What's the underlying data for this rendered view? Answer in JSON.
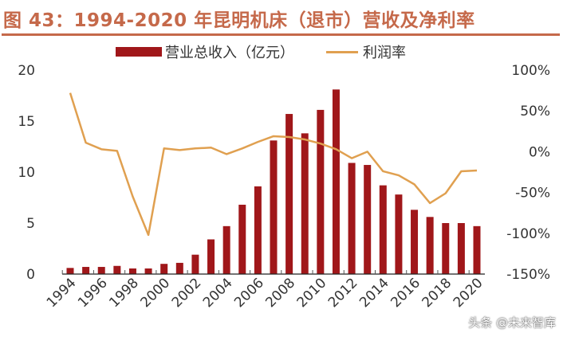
{
  "title": "图 43：1994-2020 年昆明机床（退市）营收及净利率",
  "watermark": "头条 @未来智库",
  "colors": {
    "title": "#c5694a",
    "bar": "#a0171a",
    "line": "#e0a050"
  },
  "chart_data": {
    "type": "bar+line",
    "title": "图 43：1994-2020 年昆明机床（退市）营收及净利率",
    "legend_position": "top",
    "grid": false,
    "categories": [
      "1994",
      "1995",
      "1996",
      "1997",
      "1998",
      "1999",
      "2000",
      "2001",
      "2002",
      "2003",
      "2004",
      "2005",
      "2006",
      "2007",
      "2008",
      "2009",
      "2010",
      "2011",
      "2012",
      "2013",
      "2014",
      "2015",
      "2016",
      "2017",
      "2018",
      "2019",
      "2020"
    ],
    "x_tick_labels": [
      "1994",
      "1996",
      "1998",
      "2000",
      "2002",
      "2004",
      "2006",
      "2008",
      "2010",
      "2012",
      "2014",
      "2016",
      "2018",
      "2020"
    ],
    "left_axis": {
      "ylim": [
        0,
        20
      ],
      "ticks": [
        "0",
        "5",
        "10",
        "15",
        "20"
      ]
    },
    "right_axis": {
      "ylim": [
        -150,
        100
      ],
      "ticks": [
        "-150%",
        "-100%",
        "-50%",
        "0%",
        "50%",
        "100%"
      ]
    },
    "series": [
      {
        "name": "营业总收入（亿元）",
        "type": "bar",
        "axis": "left",
        "values": [
          0.6,
          0.7,
          0.7,
          0.8,
          0.55,
          0.55,
          1.0,
          1.1,
          1.9,
          3.4,
          4.7,
          6.8,
          8.6,
          13.1,
          15.7,
          13.8,
          16.1,
          18.1,
          10.9,
          10.7,
          8.7,
          7.8,
          6.3,
          5.6,
          5.0,
          5.0,
          4.7
        ]
      },
      {
        "name": "利润率",
        "type": "line",
        "axis": "right",
        "unit": "%",
        "values": [
          72,
          11,
          3,
          1,
          -55,
          -102,
          4,
          2,
          4,
          5,
          -3,
          4,
          12,
          19,
          18,
          15,
          10,
          3,
          -8,
          0,
          -24,
          -29,
          -40,
          -63,
          -51,
          -24,
          -23
        ]
      }
    ]
  }
}
